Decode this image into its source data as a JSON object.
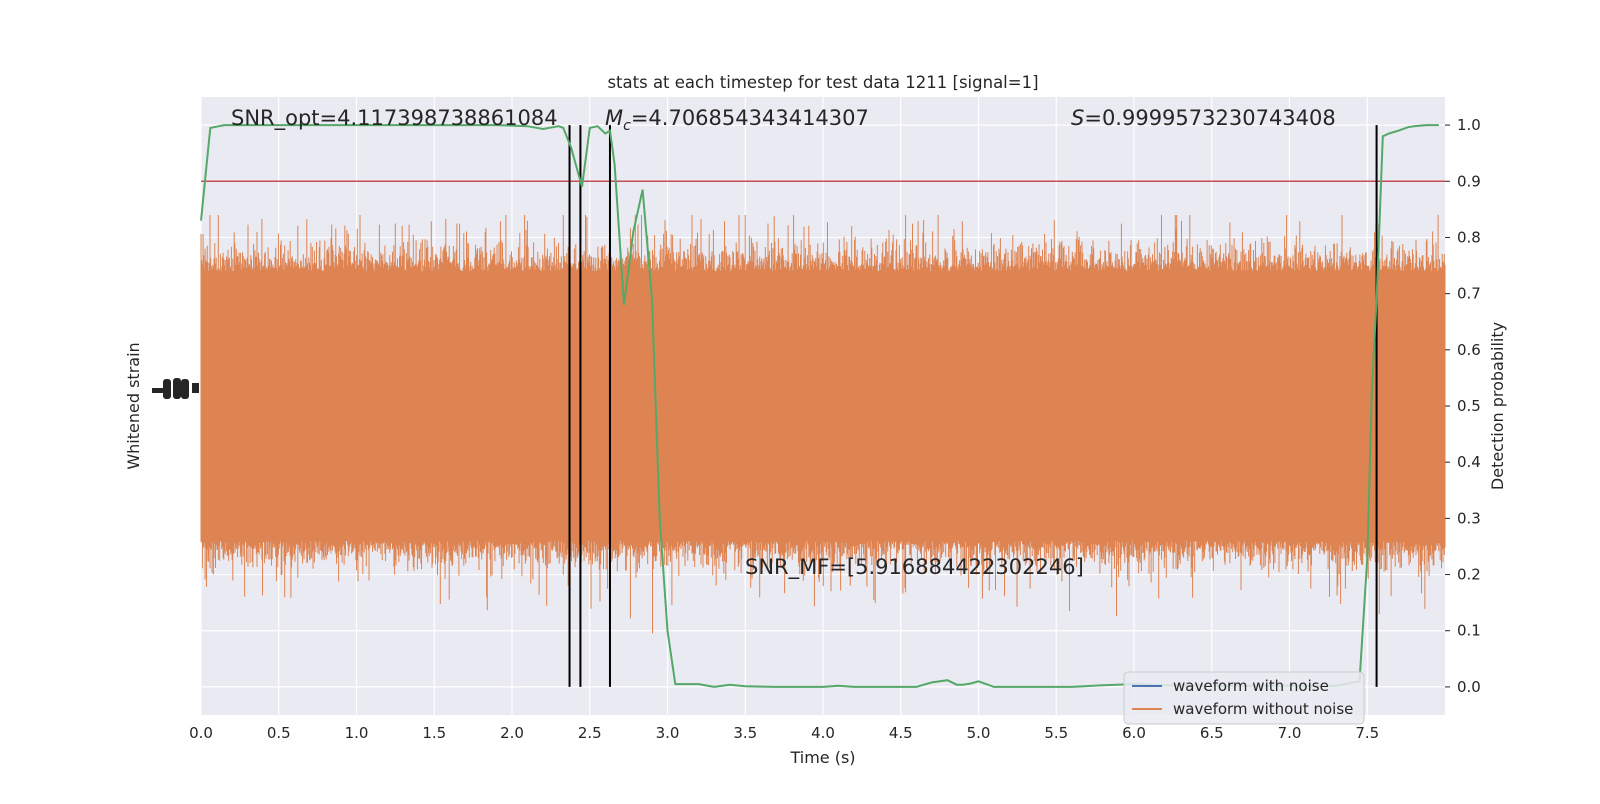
{
  "chart_data": {
    "type": "line",
    "title": "stats at each timestep for test data 1211 [signal=1]",
    "xlabel": "Time (s)",
    "ylabel_left": "Whitened strain",
    "ylabel_right": "Detection probability",
    "xlim": [
      0,
      8
    ],
    "ylim_right": [
      -0.05,
      1.05
    ],
    "x_ticks": [
      "0.0",
      "0.5",
      "1.0",
      "1.5",
      "2.0",
      "2.5",
      "3.0",
      "3.5",
      "4.0",
      "4.5",
      "5.0",
      "5.5",
      "6.0",
      "6.5",
      "7.0",
      "7.5"
    ],
    "x_tick_values": [
      0,
      0.5,
      1,
      1.5,
      2,
      2.5,
      3,
      3.5,
      4,
      4.5,
      5,
      5.5,
      6,
      6.5,
      7,
      7.5
    ],
    "y_ticks_right": [
      "0.0",
      "0.1",
      "0.2",
      "0.3",
      "0.4",
      "0.5",
      "0.6",
      "0.7",
      "0.8",
      "0.9",
      "1.0"
    ],
    "y_tick_values_right": [
      0,
      0.1,
      0.2,
      0.3,
      0.4,
      0.5,
      0.6,
      0.7,
      0.8,
      0.9,
      1.0
    ],
    "threshold": 0.9,
    "vertical_lines": [
      2.37,
      2.44,
      2.63,
      7.56
    ],
    "annotations": {
      "snr_opt": "SNR_opt=4.117398738861084",
      "mc_symbol": "M",
      "mc_sub": "c",
      "mc_value": "=4.706854343414307",
      "s_symbol": "S",
      "s_value": "=0.9999573230743408",
      "snr_mf": "SNR_MF=[5.916884422302246]"
    },
    "legend": {
      "location": "lower right",
      "entries": [
        {
          "label": "waveform with noise",
          "color": "#4c72b0"
        },
        {
          "label": "waveform without noise",
          "color": "#dd8452"
        }
      ]
    },
    "series": [
      {
        "name": "detection probability",
        "color": "#55a868",
        "x": [
          0,
          0.06,
          0.15,
          0.3,
          0.5,
          0.8,
          1.0,
          1.3,
          1.6,
          1.9,
          2.1,
          2.2,
          2.3,
          2.33,
          2.38,
          2.45,
          2.5,
          2.55,
          2.6,
          2.63,
          2.66,
          2.72,
          2.78,
          2.84,
          2.9,
          2.95,
          3.0,
          3.05,
          3.2,
          3.3,
          3.4,
          3.5,
          3.7,
          3.9,
          4.0,
          4.1,
          4.2,
          4.4,
          4.6,
          4.7,
          4.8,
          4.86,
          4.9,
          4.95,
          5.0,
          5.1,
          5.2,
          5.4,
          5.6,
          5.8,
          6.0,
          6.2,
          6.5,
          6.8,
          7.0,
          7.3,
          7.45,
          7.5,
          7.53,
          7.56,
          7.6,
          7.64,
          7.7,
          7.76,
          7.8,
          7.88,
          7.96
        ],
        "values": [
          0.83,
          0.995,
          1.0,
          1.0,
          1.0,
          1.0,
          1.0,
          1.0,
          1.0,
          1.0,
          0.998,
          0.993,
          0.998,
          0.995,
          0.96,
          0.89,
          0.995,
          0.998,
          0.985,
          0.99,
          0.93,
          0.68,
          0.81,
          0.885,
          0.69,
          0.3,
          0.1,
          0.005,
          0.005,
          0.0,
          0.004,
          0.001,
          0.0,
          0.0,
          0.0,
          0.002,
          0.0,
          0.0,
          0.0,
          0.008,
          0.012,
          0.004,
          0.004,
          0.006,
          0.01,
          0.0,
          0.0,
          0.0,
          0.0,
          0.003,
          0.005,
          0.003,
          0.002,
          0.002,
          0.002,
          0.002,
          0.01,
          0.23,
          0.53,
          0.69,
          0.98,
          0.985,
          0.99,
          0.996,
          0.998,
          1.0,
          1.0
        ]
      },
      {
        "name": "waveform without noise",
        "color": "#dd8452",
        "y_range_display": [
          -0.045,
          0.84
        ],
        "body_band": [
          0.27,
          0.73
        ],
        "n_samples": 1800
      }
    ]
  }
}
